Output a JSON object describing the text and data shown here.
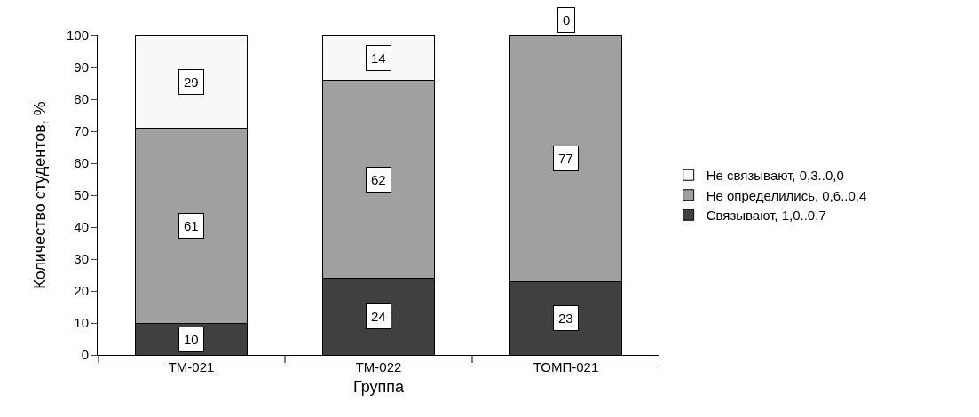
{
  "chart_data": {
    "type": "bar",
    "stacked": true,
    "xlabel": "Группа",
    "ylabel": "Количество студентов, %",
    "categories": [
      "ТМ-021",
      "ТМ-022",
      "ТОМП-021"
    ],
    "series": [
      {
        "name": "Связывают, 1,0..0,7",
        "color": "#404040",
        "values": [
          10,
          24,
          23
        ]
      },
      {
        "name": "Не определились, 0,6..0,4",
        "color": "#a0a0a0",
        "values": [
          61,
          62,
          77
        ]
      },
      {
        "name": "Не связывают, 0,3..0,0",
        "color": "#f8f8f8",
        "values": [
          29,
          14,
          0
        ]
      }
    ],
    "ylim": [
      0,
      100
    ],
    "yticks": [
      0,
      10,
      20,
      30,
      40,
      50,
      60,
      70,
      80,
      90,
      100
    ],
    "grid": false,
    "legend": "right",
    "data_labels": true
  }
}
